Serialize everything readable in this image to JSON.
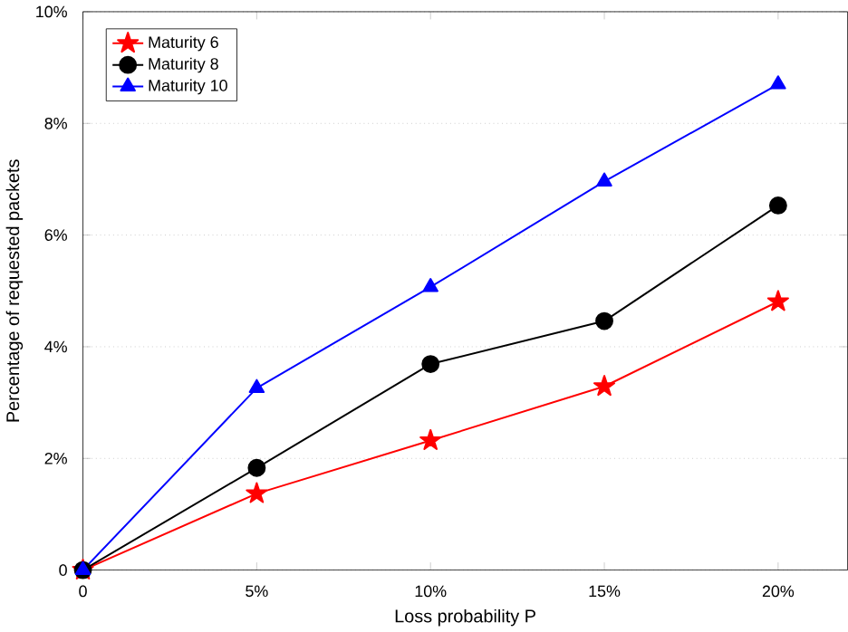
{
  "chart_data": {
    "type": "line",
    "xlabel": "Loss probability P",
    "ylabel": "Percentage of requested packets",
    "x": [
      0,
      5,
      10,
      15,
      20
    ],
    "series": [
      {
        "name": "Maturity 6",
        "color": "#ff0000",
        "marker": "star",
        "values": [
          0,
          1.37,
          2.32,
          3.29,
          4.81
        ]
      },
      {
        "name": "Maturity 8",
        "color": "#000000",
        "marker": "circle",
        "values": [
          0,
          1.83,
          3.69,
          4.46,
          6.53
        ]
      },
      {
        "name": "Maturity 10",
        "color": "#0000ff",
        "marker": "triangle",
        "values": [
          0,
          3.26,
          5.07,
          6.96,
          8.7
        ]
      }
    ],
    "xlim": [
      0,
      22
    ],
    "xticks": [
      {
        "value": 0,
        "label": "0"
      },
      {
        "value": 5,
        "label": "5%"
      },
      {
        "value": 10,
        "label": "10%"
      },
      {
        "value": 15,
        "label": "15%"
      },
      {
        "value": 20,
        "label": "20%"
      }
    ],
    "ylim": [
      0,
      10
    ],
    "yticks": [
      {
        "value": 0,
        "label": "0"
      },
      {
        "value": 2,
        "label": "2%"
      },
      {
        "value": 4,
        "label": "4%"
      },
      {
        "value": 6,
        "label": "6%"
      },
      {
        "value": 8,
        "label": "8%"
      },
      {
        "value": 10,
        "label": "10%"
      }
    ],
    "grid": "y",
    "legend": "top left",
    "line_style": "solid"
  }
}
